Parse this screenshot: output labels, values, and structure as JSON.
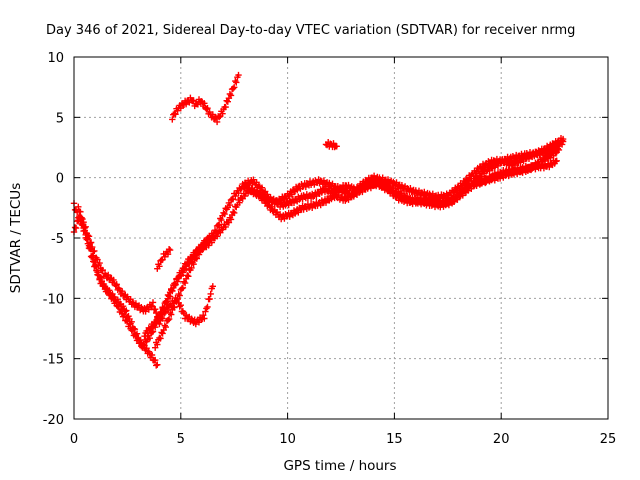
{
  "chart_data": {
    "type": "scatter",
    "title": "Day 346 of 2021, Sidereal Day-to-day VTEC variation (SDTVAR) for receiver nrmg",
    "xlabel": "GPS time / hours",
    "ylabel": "SDTVAR / TECUs",
    "xlim": [
      0,
      25
    ],
    "ylim": [
      -20,
      10
    ],
    "x_ticks": [
      "0",
      "5",
      "10",
      "15",
      "20",
      "25"
    ],
    "y_ticks": [
      "-20",
      "-15",
      "-10",
      "-5",
      "0",
      "5",
      "10"
    ],
    "grid": true,
    "legend": "none",
    "marker": "plus",
    "color": "#ff0000",
    "series": [
      {
        "points": [
          [
            0.0,
            -4.5
          ],
          [
            0.3,
            -3.0
          ],
          [
            0.6,
            -4.5
          ],
          [
            1.0,
            -6.5
          ],
          [
            1.4,
            -8.0
          ],
          [
            1.8,
            -8.5
          ],
          [
            2.2,
            -9.5
          ],
          [
            2.8,
            -10.5
          ],
          [
            3.3,
            -11.0
          ],
          [
            3.7,
            -10.5
          ],
          [
            4.0,
            -12.0
          ],
          [
            4.3,
            -11.0
          ],
          [
            4.8,
            -10.0
          ],
          [
            5.2,
            -11.5
          ],
          [
            5.7,
            -12.0
          ],
          [
            6.1,
            -11.5
          ],
          [
            6.5,
            -9.0
          ]
        ]
      },
      {
        "points": [
          [
            0.0,
            -2.3
          ],
          [
            0.4,
            -4.0
          ],
          [
            0.8,
            -6.0
          ],
          [
            1.2,
            -8.5
          ],
          [
            1.6,
            -9.5
          ],
          [
            2.0,
            -10.5
          ],
          [
            2.5,
            -12.0
          ],
          [
            3.0,
            -13.5
          ],
          [
            3.5,
            -14.5
          ],
          [
            3.9,
            -15.5
          ]
        ]
      },
      {
        "points": [
          [
            0.2,
            -2.5
          ],
          [
            0.5,
            -4.5
          ],
          [
            0.9,
            -7.0
          ],
          [
            1.4,
            -9.0
          ],
          [
            1.9,
            -10.0
          ],
          [
            2.4,
            -11.0
          ],
          [
            2.8,
            -12.5
          ],
          [
            3.2,
            -14.0
          ],
          [
            3.6,
            -13.0
          ],
          [
            4.0,
            -11.5
          ],
          [
            4.5,
            -9.5
          ],
          [
            5.0,
            -8.0
          ],
          [
            5.4,
            -7.0
          ],
          [
            5.8,
            -6.0
          ],
          [
            6.3,
            -5.0
          ]
        ]
      },
      {
        "points": [
          [
            3.8,
            -14.0
          ],
          [
            4.1,
            -13.0
          ],
          [
            4.6,
            -11.0
          ],
          [
            5.1,
            -9.0
          ],
          [
            5.6,
            -7.0
          ],
          [
            6.1,
            -5.5
          ],
          [
            6.6,
            -4.5
          ],
          [
            7.0,
            -3.0
          ],
          [
            7.5,
            -1.5
          ],
          [
            8.0,
            -0.5
          ],
          [
            8.4,
            -0.3
          ],
          [
            8.8,
            -1.0
          ],
          [
            9.2,
            -1.8
          ],
          [
            9.7,
            -2.3
          ],
          [
            10.2,
            -2.0
          ],
          [
            10.7,
            -1.6
          ],
          [
            11.2,
            -1.5
          ],
          [
            11.7,
            -1.0
          ],
          [
            12.2,
            -1.2
          ],
          [
            12.7,
            -0.7
          ],
          [
            13.2,
            -1.0
          ],
          [
            13.7,
            -0.6
          ],
          [
            14.2,
            -0.4
          ],
          [
            14.7,
            -0.8
          ],
          [
            15.2,
            -1.3
          ],
          [
            15.7,
            -1.8
          ],
          [
            16.2,
            -1.9
          ],
          [
            16.7,
            -1.9
          ],
          [
            17.2,
            -2.1
          ],
          [
            17.7,
            -1.9
          ],
          [
            18.2,
            -1.0
          ],
          [
            18.7,
            -0.3
          ],
          [
            19.2,
            0.5
          ],
          [
            19.7,
            1.0
          ],
          [
            20.2,
            1.5
          ],
          [
            20.7,
            1.7
          ],
          [
            21.2,
            1.9
          ],
          [
            21.7,
            2.0
          ],
          [
            22.2,
            2.2
          ],
          [
            22.6,
            2.6
          ],
          [
            22.9,
            3.0
          ]
        ]
      },
      {
        "points": [
          [
            3.9,
            -7.5
          ],
          [
            4.2,
            -6.5
          ],
          [
            4.5,
            -6.0
          ]
        ]
      },
      {
        "points": [
          [
            3.3,
            -13.0
          ],
          [
            3.8,
            -12.0
          ],
          [
            4.3,
            -10.5
          ],
          [
            4.8,
            -8.5
          ],
          [
            5.3,
            -7.0
          ],
          [
            5.8,
            -6.0
          ],
          [
            6.3,
            -5.5
          ],
          [
            6.8,
            -4.5
          ],
          [
            7.3,
            -3.5
          ],
          [
            7.7,
            -2.0
          ],
          [
            8.2,
            -1.0
          ],
          [
            8.7,
            -1.5
          ],
          [
            9.2,
            -2.5
          ],
          [
            9.7,
            -3.3
          ],
          [
            10.2,
            -3.0
          ],
          [
            10.7,
            -2.5
          ],
          [
            11.2,
            -2.3
          ],
          [
            11.7,
            -2.0
          ],
          [
            12.2,
            -1.5
          ],
          [
            12.7,
            -1.8
          ],
          [
            13.2,
            -1.3
          ],
          [
            13.7,
            -0.8
          ],
          [
            14.2,
            -0.5
          ],
          [
            14.7,
            -1.0
          ],
          [
            15.2,
            -1.7
          ],
          [
            15.7,
            -2.0
          ],
          [
            16.2,
            -2.0
          ],
          [
            16.7,
            -2.2
          ],
          [
            17.2,
            -2.3
          ],
          [
            17.7,
            -2.0
          ],
          [
            18.2,
            -1.3
          ],
          [
            18.7,
            -0.6
          ],
          [
            19.2,
            -0.3
          ],
          [
            19.7,
            0.2
          ],
          [
            20.2,
            0.5
          ],
          [
            20.7,
            0.6
          ],
          [
            21.2,
            0.8
          ],
          [
            21.7,
            0.9
          ],
          [
            22.2,
            1.0
          ],
          [
            22.6,
            1.4
          ]
        ]
      },
      {
        "points": [
          [
            8.0,
            -0.8
          ],
          [
            8.5,
            -1.2
          ],
          [
            9.0,
            -1.8
          ],
          [
            9.5,
            -2.0
          ],
          [
            10.0,
            -1.5
          ],
          [
            10.5,
            -0.8
          ],
          [
            11.0,
            -0.5
          ],
          [
            11.5,
            -0.3
          ],
          [
            12.0,
            -0.6
          ],
          [
            12.5,
            -1.0
          ],
          [
            13.0,
            -1.5
          ],
          [
            13.5,
            -0.5
          ],
          [
            14.0,
            0.0
          ],
          [
            14.5,
            -0.2
          ],
          [
            15.0,
            -0.5
          ],
          [
            15.5,
            -0.9
          ],
          [
            16.0,
            -1.2
          ],
          [
            16.5,
            -1.4
          ],
          [
            17.0,
            -1.6
          ],
          [
            17.5,
            -1.5
          ],
          [
            18.0,
            -0.8
          ],
          [
            18.5,
            0.0
          ],
          [
            19.0,
            0.8
          ],
          [
            19.5,
            1.3
          ],
          [
            20.0,
            1.4
          ],
          [
            20.5,
            1.1
          ],
          [
            21.0,
            1.5
          ],
          [
            21.5,
            1.9
          ],
          [
            22.0,
            2.3
          ],
          [
            22.5,
            2.8
          ],
          [
            22.9,
            3.2
          ]
        ]
      },
      {
        "points": [
          [
            18.8,
            -0.4
          ],
          [
            19.3,
            -0.2
          ],
          [
            19.8,
            0.0
          ],
          [
            20.3,
            0.3
          ],
          [
            20.8,
            0.5
          ],
          [
            21.3,
            0.7
          ],
          [
            21.8,
            1.3
          ],
          [
            22.3,
            1.8
          ],
          [
            22.7,
            2.3
          ]
        ]
      },
      {
        "points": [
          [
            11.8,
            2.8
          ],
          [
            12.1,
            2.7
          ],
          [
            12.3,
            2.6
          ]
        ]
      },
      {
        "points": [
          [
            4.6,
            5.0
          ],
          [
            4.9,
            5.8
          ],
          [
            5.2,
            6.2
          ],
          [
            5.5,
            6.5
          ],
          [
            5.7,
            6.0
          ],
          [
            5.9,
            6.4
          ],
          [
            6.1,
            6.0
          ],
          [
            6.4,
            5.2
          ],
          [
            6.7,
            4.8
          ],
          [
            7.0,
            5.6
          ],
          [
            7.3,
            6.8
          ],
          [
            7.5,
            7.6
          ],
          [
            7.7,
            8.5
          ]
        ]
      }
    ]
  }
}
